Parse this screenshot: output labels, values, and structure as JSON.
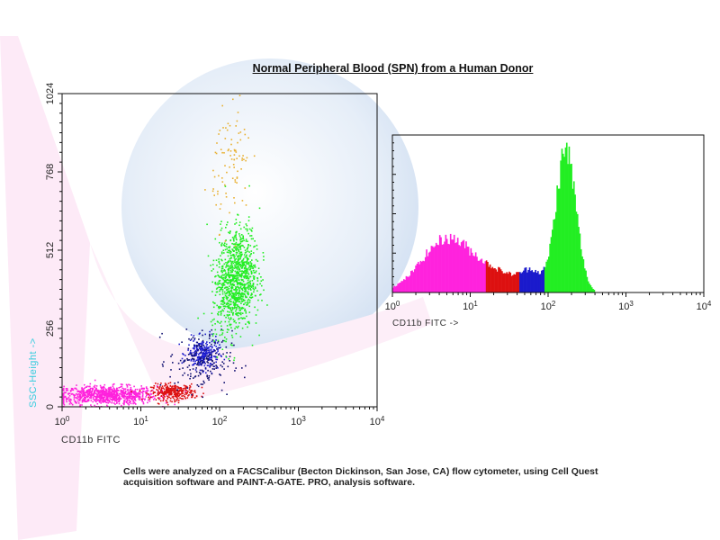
{
  "title": "Normal Peripheral Blood (SPN) from a Human Donor",
  "caption": {
    "line1": "Cells were analyzed on a FACSCalibur (Becton Dickinson, San Jose, CA) flow cytometer, using Cell Quest",
    "line2": "acquisition software and PAINT-A-GATE. PRO, analysis software."
  },
  "chart_data": [
    {
      "type": "scatter",
      "xlabel": "CD11b FITC",
      "ylabel": "SSC-Height ->",
      "xscale": "log",
      "xlim": [
        1,
        10000
      ],
      "ylim": [
        0,
        1024
      ],
      "xticks": [
        "10^0",
        "10^1",
        "10^2",
        "10^3",
        "10^4"
      ],
      "yticks": [
        "0",
        "256",
        "512",
        "768",
        "1024"
      ],
      "populations": [
        {
          "name": "magenta",
          "color": "#ff22dd",
          "log_x_mean": 0.55,
          "log_x_sd": 0.32,
          "y_mean": 40,
          "y_sd": 15,
          "n": 900
        },
        {
          "name": "red",
          "color": "#dd1111",
          "log_x_mean": 1.4,
          "log_x_sd": 0.14,
          "y_mean": 50,
          "y_sd": 13,
          "n": 300
        },
        {
          "name": "blue",
          "color": "#1a1acc",
          "log_x_mean": 1.78,
          "log_x_sd": 0.1,
          "y_mean": 175,
          "y_sd": 25,
          "n": 250
        },
        {
          "name": "navy",
          "color": "#101070",
          "log_x_mean": 1.75,
          "log_x_sd": 0.2,
          "y_mean": 150,
          "y_sd": 50,
          "n": 180
        },
        {
          "name": "green",
          "color": "#22ee22",
          "log_x_mean": 2.2,
          "log_x_sd": 0.13,
          "y_mean": 420,
          "y_sd": 85,
          "n": 1100
        },
        {
          "name": "orange",
          "color": "#e8b030",
          "log_x_mean": 2.15,
          "log_x_sd": 0.12,
          "y_mean": 800,
          "y_sd": 100,
          "n": 90
        }
      ]
    },
    {
      "type": "bar",
      "subtype": "histogram",
      "xlabel": "CD11b FITC ->",
      "xscale": "log",
      "xlim": [
        1,
        10000
      ],
      "ylabel": "",
      "ylim": [
        0,
        1
      ],
      "xticks": [
        "10^0",
        "10^1",
        "10^2",
        "10^3",
        "10^4"
      ],
      "series": [
        {
          "name": "magenta",
          "color": "#ff22dd",
          "log_x_mean": 0.7,
          "log_x_sd": 0.33,
          "peak": 0.34,
          "log_x_range": [
            0,
            1.2
          ]
        },
        {
          "name": "red",
          "color": "#dd1111",
          "log_x_mean": 1.4,
          "log_x_sd": 0.3,
          "peak": 0.1,
          "log_x_range": [
            1.2,
            1.62
          ]
        },
        {
          "name": "blue",
          "color": "#1a1acc",
          "log_x_mean": 1.78,
          "log_x_sd": 0.12,
          "peak": 0.1,
          "log_x_range": [
            1.62,
            1.95
          ]
        },
        {
          "name": "green",
          "color": "#22ee22",
          "log_x_mean": 2.22,
          "log_x_sd": 0.13,
          "peak": 0.9,
          "log_x_range": [
            1.95,
            2.6
          ]
        }
      ]
    }
  ]
}
